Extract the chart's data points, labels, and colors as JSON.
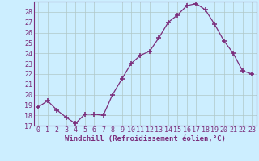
{
  "x": [
    0,
    1,
    2,
    3,
    4,
    5,
    6,
    7,
    8,
    9,
    10,
    11,
    12,
    13,
    14,
    15,
    16,
    17,
    18,
    19,
    20,
    21,
    22,
    23
  ],
  "y": [
    18.8,
    19.4,
    18.5,
    17.8,
    17.2,
    18.1,
    18.1,
    18.0,
    20.0,
    21.5,
    23.0,
    23.8,
    24.2,
    25.5,
    27.0,
    27.7,
    28.6,
    28.8,
    28.2,
    26.8,
    25.2,
    24.0,
    22.3,
    22.0
  ],
  "line_color": "#7B2D7B",
  "marker": "+",
  "marker_size": 4,
  "marker_lw": 1.2,
  "bg_color": "#cceeff",
  "grid_color": "#b0c8c8",
  "xlabel": "Windchill (Refroidissement éolien,°C)",
  "ylim": [
    17,
    29
  ],
  "xlim": [
    -0.5,
    23.5
  ],
  "yticks": [
    17,
    18,
    19,
    20,
    21,
    22,
    23,
    24,
    25,
    26,
    27,
    28
  ],
  "xticks": [
    0,
    1,
    2,
    3,
    4,
    5,
    6,
    7,
    8,
    9,
    10,
    11,
    12,
    13,
    14,
    15,
    16,
    17,
    18,
    19,
    20,
    21,
    22,
    23
  ],
  "label_color": "#7B2D7B",
  "label_fontsize": 6.5,
  "tick_fontsize": 6
}
